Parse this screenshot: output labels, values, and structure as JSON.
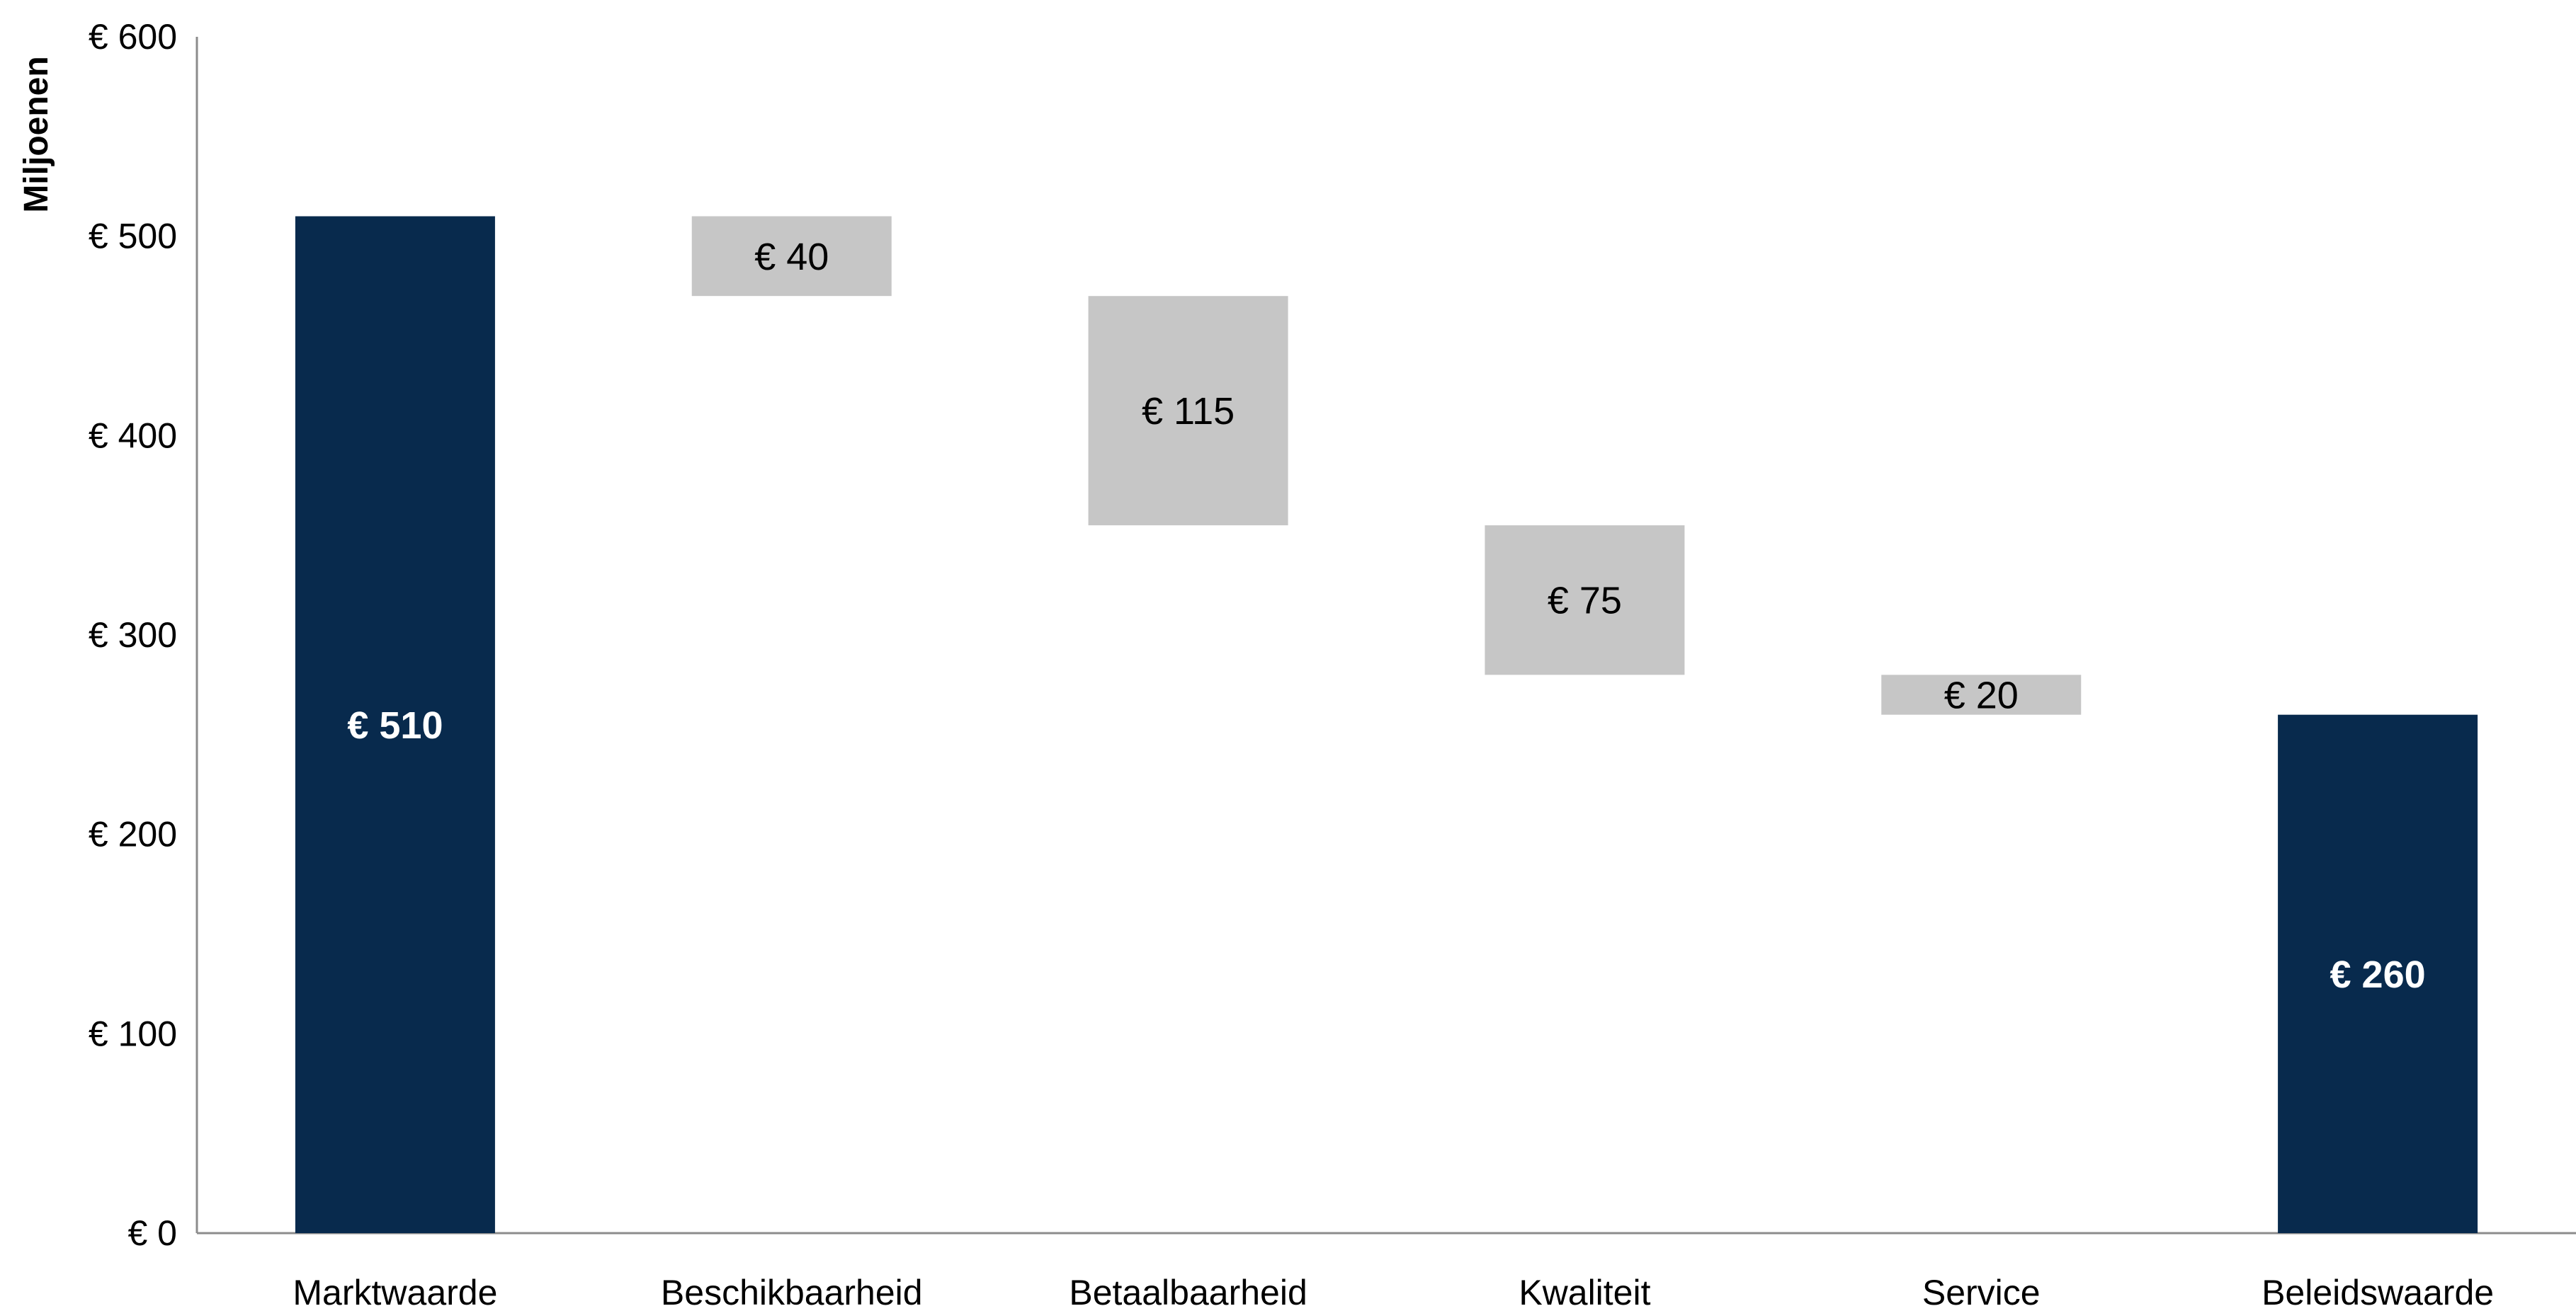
{
  "chart_data": {
    "type": "bar",
    "subtype": "waterfall",
    "ylabel": "Miljoenen",
    "ylim": [
      0,
      600
    ],
    "y_ticks": [
      0,
      100,
      200,
      300,
      400,
      500,
      600
    ],
    "y_tick_labels": [
      "€ 0",
      "€ 100",
      "€ 200",
      "€ 300",
      "€ 400",
      "€ 500",
      "€ 600"
    ],
    "grid": false,
    "legend": "none",
    "colors": {
      "total": "#082a4d",
      "delta": "#c6c6c6",
      "axis": "#8c8c8c"
    },
    "bars": [
      {
        "category": "Marktwaarde",
        "kind": "total",
        "start": 0,
        "end": 510,
        "label": "€ 510"
      },
      {
        "category": "Beschikbaarheid",
        "kind": "delta",
        "start": 510,
        "end": 470,
        "label": "€ 40"
      },
      {
        "category": "Betaalbaarheid",
        "kind": "delta",
        "start": 470,
        "end": 355,
        "label": "€ 115"
      },
      {
        "category": "Kwaliteit",
        "kind": "delta",
        "start": 355,
        "end": 280,
        "label": "€ 75"
      },
      {
        "category": "Service",
        "kind": "delta",
        "start": 280,
        "end": 260,
        "label": "€ 20"
      },
      {
        "category": "Beleidswaarde",
        "kind": "total",
        "start": 0,
        "end": 260,
        "label": "€ 260"
      }
    ]
  }
}
